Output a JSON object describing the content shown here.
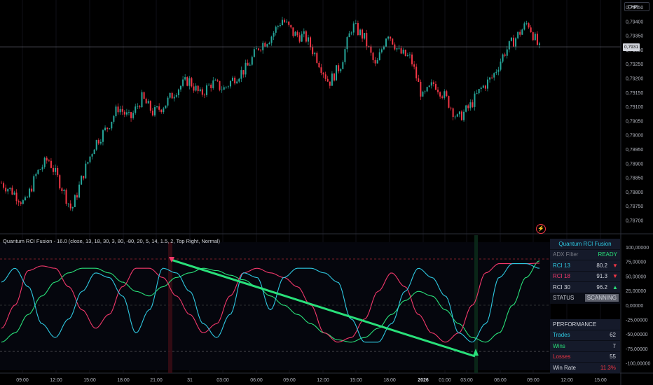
{
  "currency_label": "CHF",
  "price_tag": "0,7931",
  "price_axis": [
    "0,79450",
    "0,79400",
    "0,79350",
    "0,79300",
    "0,79250",
    "0,79200",
    "0,79150",
    "0,79100",
    "0,79050",
    "0,79000",
    "0,78950",
    "0,78900",
    "0,78850",
    "0,78800",
    "0,78750",
    "0,78700"
  ],
  "indicator_title": "Quantum RCI Fusion - 16.0 (close, 13, 18, 30, 3, 80, -80, 20, 5, 14, 1.5, 2, Top Right, Normal)",
  "indicator_axis": [
    "100,00000",
    "75,00000",
    "50,00000",
    "25,00000",
    "0,00000",
    "-25,00000",
    "-50,00000",
    "-75,00000",
    "-100,00000"
  ],
  "time_axis": [
    "09:00",
    "12:00",
    "15:00",
    "18:00",
    "21:00",
    "31",
    "03:00",
    "06:00",
    "09:00",
    "12:00",
    "15:00",
    "18:00",
    "2026",
    "01:00",
    "03:00",
    "06:00",
    "09:00",
    "12:00",
    "15:00"
  ],
  "status_table": {
    "title": "Quantum RCI Fusion",
    "rows": [
      {
        "label": "ADX Filter",
        "value": "READY",
        "arrow": ""
      },
      {
        "label": "RCI 13",
        "value": "80.2",
        "arrow": "▼"
      },
      {
        "label": "RCI 18",
        "value": "91.3",
        "arrow": "▼"
      },
      {
        "label": "RCI 30",
        "value": "96.2",
        "arrow": "▲"
      },
      {
        "label": "STATUS",
        "value": "SCANNING",
        "arrow": ""
      }
    ]
  },
  "performance": {
    "title": "PERFORMANCE",
    "rows": [
      {
        "label": "Trades",
        "value": "62"
      },
      {
        "label": "Wins",
        "value": "7"
      },
      {
        "label": "Losses",
        "value": "55"
      },
      {
        "label": "Win Rate",
        "value": "11.3%"
      }
    ]
  },
  "colors": {
    "up": "#26a69a",
    "down": "#f23645",
    "rci13": "#2ec7e0",
    "rci18": "#f2386b",
    "rci30": "#29e07a",
    "accent": "#2962ff"
  },
  "chart_data": {
    "type": "candlestick",
    "price_range": [
      0.787,
      0.7945
    ],
    "rci_range": [
      -100,
      100
    ],
    "close_path": [
      0.7887,
      0.7884,
      0.788,
      0.789,
      0.7895,
      0.7887,
      0.7878,
      0.789,
      0.79,
      0.7905,
      0.7912,
      0.7908,
      0.7915,
      0.791,
      0.7913,
      0.7918,
      0.7921,
      0.7916,
      0.792,
      0.7918,
      0.7922,
      0.7925,
      0.7932,
      0.7935,
      0.7941,
      0.7936,
      0.7935,
      0.7928,
      0.792,
      0.7926,
      0.7939,
      0.7935,
      0.7925,
      0.7937,
      0.793,
      0.7928,
      0.7915,
      0.792,
      0.7915,
      0.7908,
      0.7912,
      0.7918,
      0.7922,
      0.793,
      0.7935,
      0.794,
      0.7931
    ],
    "rci13": [
      50,
      80,
      40,
      -40,
      -70,
      -30,
      30,
      70,
      60,
      20,
      -60,
      -10,
      80,
      70,
      30,
      -40,
      -70,
      -20,
      70,
      60,
      -10,
      60,
      80,
      80,
      70,
      50,
      -30,
      -80,
      -80,
      -40,
      30,
      80,
      60,
      20,
      -60,
      -80,
      -40,
      60,
      90,
      90,
      80
    ],
    "rci18": [
      -50,
      0,
      75,
      85,
      80,
      40,
      -10,
      -50,
      -20,
      40,
      80,
      80,
      60,
      20,
      -20,
      -60,
      -40,
      20,
      70,
      80,
      70,
      60,
      40,
      0,
      -60,
      -80,
      -70,
      -30,
      30,
      70,
      40,
      -20,
      -60,
      -80,
      -60,
      0,
      70,
      90,
      90,
      90,
      91
    ],
    "rci30": [
      -80,
      -60,
      -20,
      20,
      50,
      70,
      80,
      80,
      70,
      50,
      30,
      20,
      40,
      60,
      70,
      80,
      75,
      65,
      55,
      40,
      20,
      0,
      -20,
      -40,
      -60,
      -75,
      -80,
      -70,
      -50,
      -20,
      10,
      30,
      20,
      -10,
      -40,
      -70,
      -80,
      -60,
      0,
      60,
      96
    ],
    "divergence_line": [
      [
        78.5,
        "start"
      ],
      [
        -88,
        "end"
      ]
    ]
  }
}
